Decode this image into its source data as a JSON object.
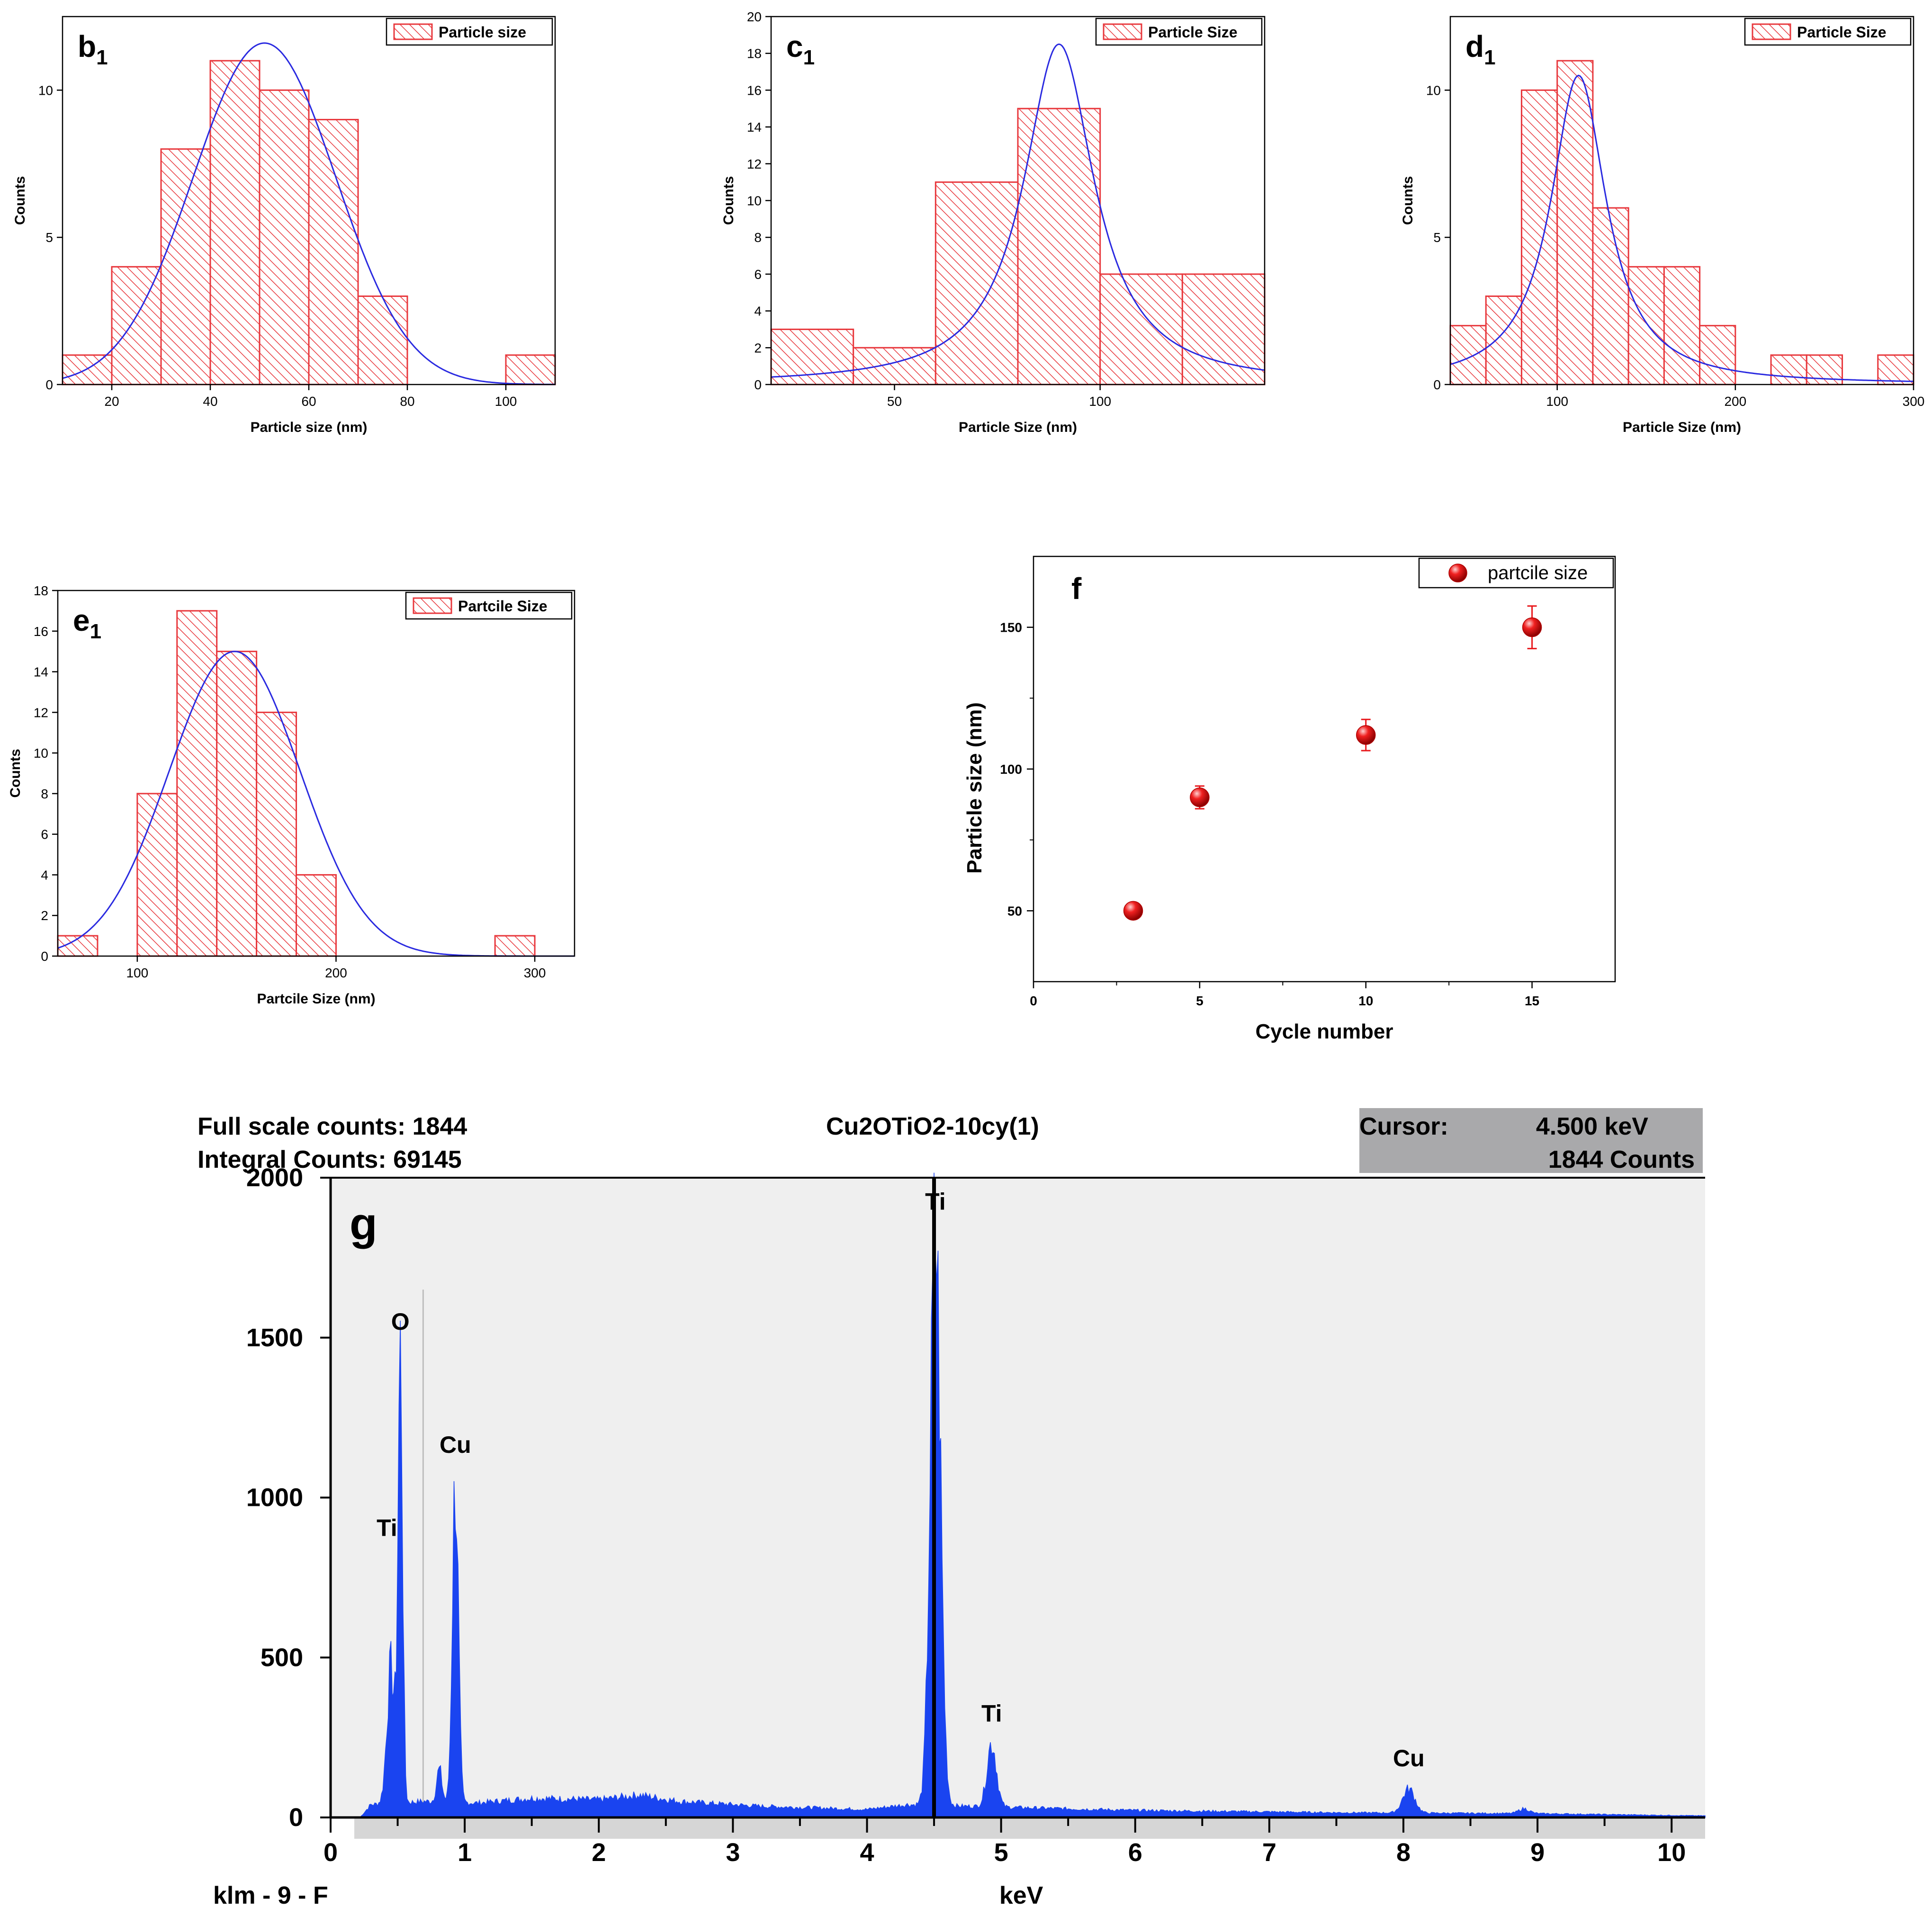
{
  "colors": {
    "bar_stroke": "#e8383d",
    "bar_hatch": "#e8383d",
    "bar_fill": "#ffffff",
    "fit_line": "#2a2ae0",
    "point": "#e8181c",
    "eds_bar": "#1a44f0",
    "eds_panel_bg": "#efefef",
    "cursor_box_bg": "#a9a9ab",
    "text": "#000000"
  },
  "chart_data": [
    {
      "id": "b1",
      "type": "bar",
      "panel_label": "b",
      "panel_subscript": "1",
      "title": "",
      "xlabel": "Particle size (nm)",
      "ylabel": "Counts",
      "legend": "Particle size",
      "legend_position": "top-right",
      "xlim": [
        10,
        110
      ],
      "ylim": [
        0,
        12.5
      ],
      "xticks": [
        20,
        40,
        60,
        80,
        100
      ],
      "yticks": [
        0,
        5,
        10
      ],
      "bin_edges": [
        10,
        20,
        30,
        40,
        50,
        60,
        70,
        80
      ],
      "counts": [
        1,
        4,
        8,
        11,
        10,
        9,
        3
      ],
      "extra_bars": [
        {
          "x0": 100,
          "x1": 110,
          "count": 1
        }
      ],
      "fit": {
        "kind": "gauss",
        "center": 51,
        "sigma": 14.5,
        "amplitude": 11.6,
        "baseline": 0
      }
    },
    {
      "id": "c1",
      "type": "bar",
      "panel_label": "c",
      "panel_subscript": "1",
      "title": "",
      "xlabel": "Particle Size (nm)",
      "ylabel": "Counts",
      "legend": "Particle Size",
      "legend_position": "top-right",
      "xlim": [
        20,
        140
      ],
      "ylim": [
        0,
        20
      ],
      "xticks": [
        50,
        100
      ],
      "yticks": [
        0,
        2,
        4,
        6,
        8,
        10,
        12,
        14,
        16,
        18,
        20
      ],
      "bin_edges": [
        20,
        40,
        60,
        80,
        100,
        120,
        140
      ],
      "counts": [
        3,
        2,
        11,
        15,
        6,
        6
      ],
      "extra_bars": [],
      "fit": {
        "kind": "lorentz",
        "center": 90,
        "gamma": 10.5,
        "amplitude": 18.5,
        "baseline": 0
      }
    },
    {
      "id": "d1",
      "type": "bar",
      "panel_label": "d",
      "panel_subscript": "1",
      "title": "",
      "xlabel": "Particle Size (nm)",
      "ylabel": "Counts",
      "legend": "Particle Size",
      "legend_position": "top-right",
      "xlim": [
        40,
        300
      ],
      "ylim": [
        0,
        12.5
      ],
      "xticks": [
        100,
        200,
        300
      ],
      "yticks": [
        0,
        5,
        10
      ],
      "bin_edges": [
        40,
        60,
        80,
        100,
        120,
        140,
        160,
        180,
        200
      ],
      "counts": [
        2,
        3,
        10,
        11,
        6,
        4,
        4,
        2
      ],
      "extra_bars": [
        {
          "x0": 220,
          "x1": 240,
          "count": 1
        },
        {
          "x0": 240,
          "x1": 260,
          "count": 1
        },
        {
          "x0": 280,
          "x1": 300,
          "count": 1
        }
      ],
      "fit": {
        "kind": "lorentz",
        "center": 112,
        "gamma": 19,
        "amplitude": 10.5,
        "baseline": 0
      }
    },
    {
      "id": "e1",
      "type": "bar",
      "panel_label": "e",
      "panel_subscript": "1",
      "title": "",
      "xlabel": "Partcile Size (nm)",
      "ylabel": "Counts",
      "legend": "Partcile Size",
      "legend_position": "top-right",
      "xlim": [
        60,
        320
      ],
      "ylim": [
        0,
        18
      ],
      "xticks": [
        100,
        200,
        300
      ],
      "yticks": [
        0,
        2,
        4,
        6,
        8,
        10,
        12,
        14,
        16,
        18
      ],
      "bin_edges": [
        100,
        120,
        140,
        160,
        180,
        200
      ],
      "counts": [
        8,
        17,
        15,
        12,
        4
      ],
      "extra_bars": [
        {
          "x0": 60,
          "x1": 80,
          "count": 1
        },
        {
          "x0": 280,
          "x1": 300,
          "count": 1
        }
      ],
      "fit": {
        "kind": "gauss",
        "center": 149,
        "sigma": 33,
        "amplitude": 15,
        "baseline": 0
      }
    },
    {
      "id": "f",
      "type": "scatter",
      "panel_label": "f",
      "panel_subscript": "",
      "title": "",
      "xlabel": "Cycle number",
      "ylabel": "Particle size (nm)",
      "legend": "partcile size",
      "legend_position": "top-right",
      "xlim": [
        0,
        17.5
      ],
      "ylim": [
        25,
        175
      ],
      "xticks": [
        0,
        5,
        10,
        15
      ],
      "xminor": [
        2.5,
        7.5,
        12.5
      ],
      "yticks": [
        50,
        100,
        150
      ],
      "yminor": [
        75,
        125
      ],
      "x": [
        3,
        5,
        10,
        15
      ],
      "y": [
        50,
        90,
        112,
        150
      ],
      "yerr": [
        0,
        4,
        5.5,
        7.5
      ]
    },
    {
      "id": "g",
      "type": "bar",
      "panel_label": "g",
      "panel_subscript": "",
      "title": "Cu2OTiO2-10cy(1)",
      "header_left": [
        "Full scale counts: 1844",
        "Integral Counts: 69145"
      ],
      "cursor_label": "Cursor:",
      "cursor_value": "4.500 keV",
      "cursor_counts": "1844 Counts",
      "cursor_x": 4.5,
      "xlabel": "keV",
      "footer_left": "klm - 9 - F",
      "ylabel": "",
      "xlim": [
        0,
        10.25
      ],
      "ylim": [
        0,
        2000
      ],
      "xticks": [
        0,
        1,
        2,
        3,
        4,
        5,
        6,
        7,
        8,
        9,
        10
      ],
      "yticks": [
        0,
        500,
        1000,
        1500,
        2000
      ],
      "spectrum": {
        "start": 0.22,
        "step": 0.01,
        "background": [
          {
            "e": 0.22,
            "c": 0
          },
          {
            "e": 0.3,
            "c": 40
          },
          {
            "e": 0.7,
            "c": 50
          },
          {
            "e": 1.1,
            "c": 45
          },
          {
            "e": 1.5,
            "c": 60
          },
          {
            "e": 2.0,
            "c": 55
          },
          {
            "e": 2.3,
            "c": 70
          },
          {
            "e": 2.6,
            "c": 50
          },
          {
            "e": 3.2,
            "c": 35
          },
          {
            "e": 4.0,
            "c": 25
          },
          {
            "e": 4.3,
            "c": 40
          },
          {
            "e": 5.2,
            "c": 30
          },
          {
            "e": 6.0,
            "c": 22
          },
          {
            "e": 7.5,
            "c": 15
          },
          {
            "e": 9.0,
            "c": 12
          },
          {
            "e": 10.25,
            "c": 5
          }
        ],
        "peaks": [
          {
            "e": 0.45,
            "c": 420,
            "w": 0.03
          },
          {
            "e": 0.52,
            "c": 1380,
            "w": 0.017
          },
          {
            "e": 0.93,
            "c": 1010,
            "w": 0.022
          },
          {
            "e": 0.81,
            "c": 100,
            "w": 0.02
          },
          {
            "e": 4.51,
            "c": 1780,
            "w": 0.038
          },
          {
            "e": 4.93,
            "c": 200,
            "w": 0.035
          },
          {
            "e": 8.04,
            "c": 75,
            "w": 0.045
          },
          {
            "e": 8.9,
            "c": 15,
            "w": 0.04
          }
        ]
      },
      "peak_labels": [
        {
          "text": "O",
          "e": 0.52,
          "c": 1525
        },
        {
          "text": "Cu",
          "e": 0.93,
          "c": 1140
        },
        {
          "text": "Ti",
          "e": 0.42,
          "c": 880
        },
        {
          "text": "Ti",
          "e": 4.51,
          "c": 1900
        },
        {
          "text": "Ti",
          "e": 4.93,
          "c": 300
        },
        {
          "text": "Cu",
          "e": 8.04,
          "c": 160
        }
      ]
    }
  ]
}
